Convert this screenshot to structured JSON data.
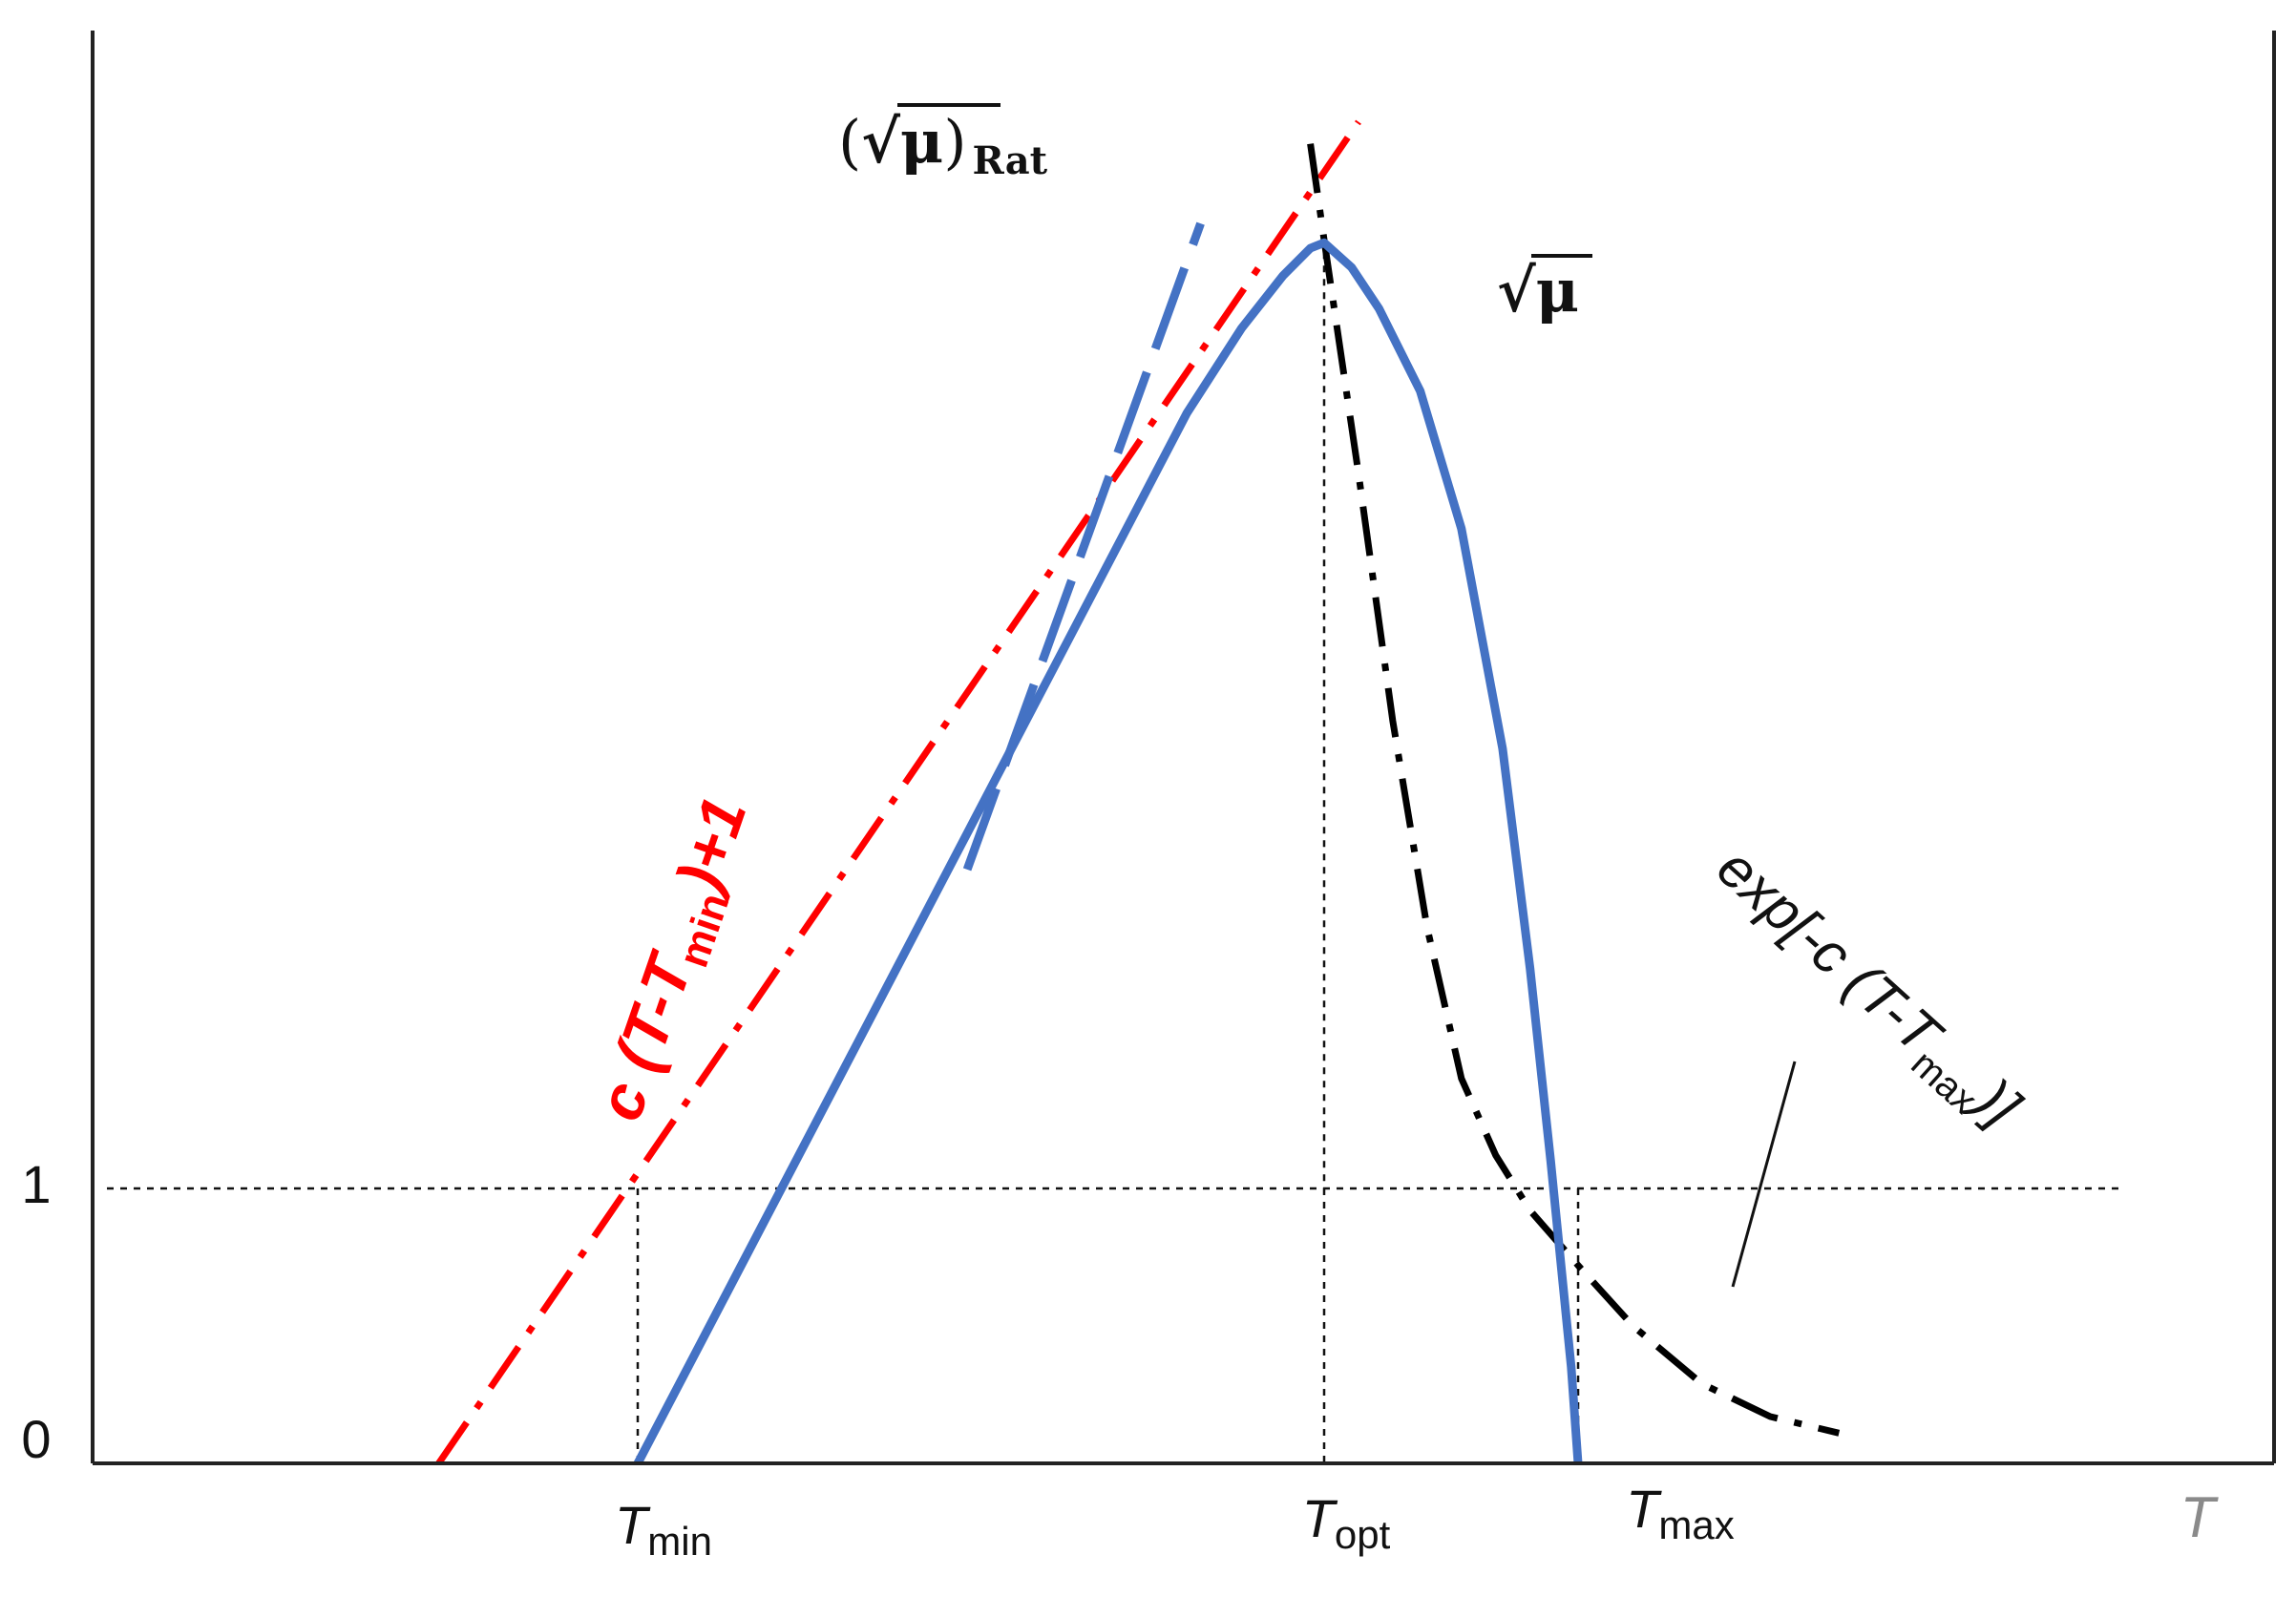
{
  "chart_data": {
    "type": "line",
    "x_axis": {
      "label": "T",
      "ticks": [
        {
          "name": "tmin",
          "base": "T",
          "sub": "min"
        },
        {
          "name": "topt",
          "base": "T",
          "sub": "opt"
        },
        {
          "name": "tmax",
          "base": "T",
          "sub": "max"
        }
      ]
    },
    "y_axis": {
      "ticks": [
        "0",
        "1"
      ]
    },
    "grid": false,
    "series": [
      {
        "key": "sqrt_mu",
        "label": "√μ",
        "color": "#4472C4",
        "style": "solid",
        "points": [
          [
            0.0,
            0.0
          ],
          [
            0.2,
            0.955
          ],
          [
            0.4,
            1.91
          ],
          [
            0.6,
            2.865
          ],
          [
            0.72,
            3.438
          ],
          [
            0.8,
            3.82
          ],
          [
            0.88,
            4.13
          ],
          [
            0.94,
            4.32
          ],
          [
            0.98,
            4.42
          ],
          [
            1.0,
            4.44
          ],
          [
            1.04,
            4.35
          ],
          [
            1.08,
            4.2
          ],
          [
            1.14,
            3.9
          ],
          [
            1.2,
            3.4
          ],
          [
            1.26,
            2.6
          ],
          [
            1.3,
            1.8
          ],
          [
            1.33,
            1.1
          ],
          [
            1.36,
            0.35
          ],
          [
            1.37,
            0.0
          ]
        ]
      },
      {
        "key": "ratkowsky",
        "label_open": "(",
        "label_root": "√μ",
        "label_close": ")",
        "label_sub": "Rat",
        "color": "#4472C4",
        "style": "dashed",
        "points": [
          [
            0.48,
            2.16
          ],
          [
            0.82,
            4.51
          ]
        ]
      },
      {
        "key": "linear",
        "label_prefix": "c ",
        "label_inner": "(T-T",
        "label_sub": "min",
        "label_suffix": ")+1",
        "color": "#FF0000",
        "style": "dashdot",
        "points": [
          [
            -0.29,
            0.0
          ],
          [
            1.05,
            4.88
          ]
        ]
      },
      {
        "key": "exp_decay",
        "label_prefix": "exp[-c (T-T",
        "label_sub": "max",
        "label_suffix": ")]",
        "color": "#000000",
        "style": "dashdot",
        "points": [
          [
            0.98,
            4.8
          ],
          [
            1.0,
            4.45
          ],
          [
            1.05,
            3.6
          ],
          [
            1.1,
            2.7
          ],
          [
            1.15,
            1.95
          ],
          [
            1.2,
            1.4
          ],
          [
            1.25,
            1.12
          ],
          [
            1.3,
            0.92
          ],
          [
            1.37,
            0.72
          ],
          [
            1.45,
            0.5
          ],
          [
            1.55,
            0.29
          ],
          [
            1.65,
            0.17
          ],
          [
            1.75,
            0.11
          ]
        ]
      }
    ]
  }
}
